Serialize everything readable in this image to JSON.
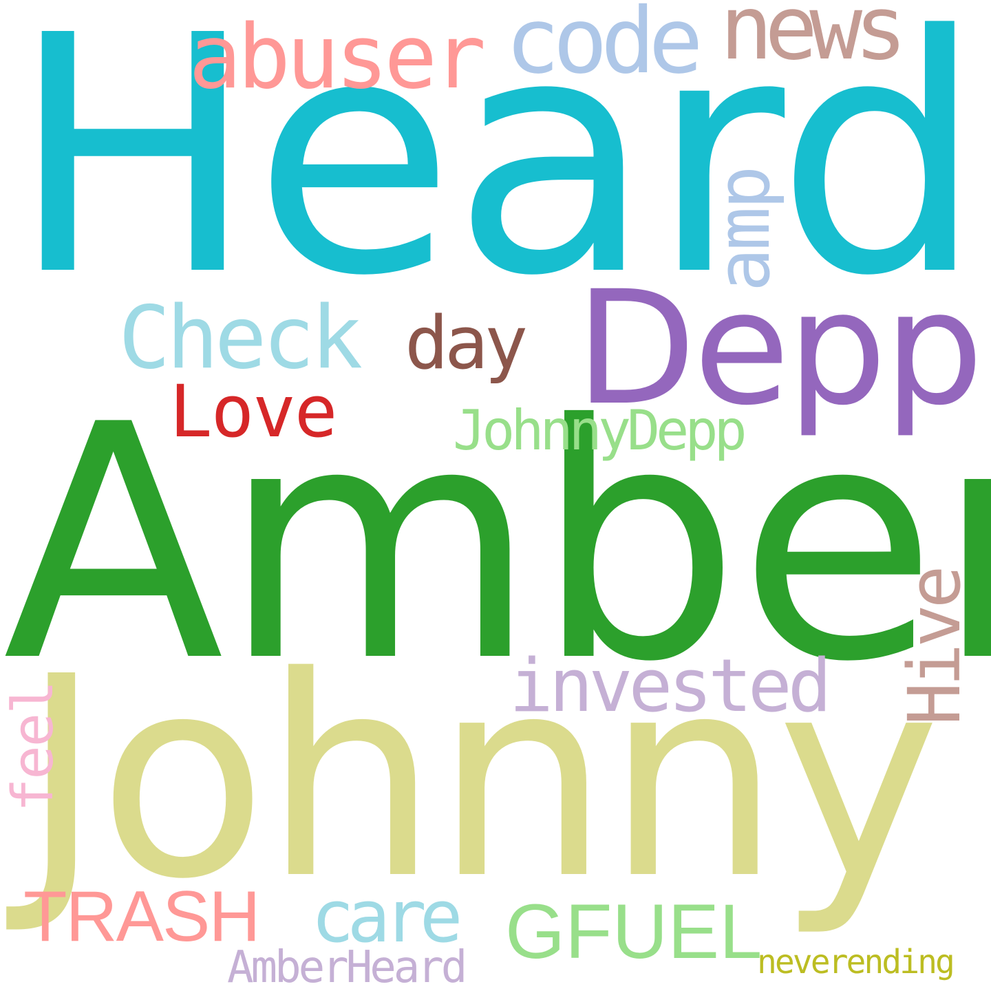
{
  "words": [
    {
      "id": "heard",
      "text": "Heard",
      "color": "#17becf"
    },
    {
      "id": "amber",
      "text": "Amber",
      "color": "#2ca02c"
    },
    {
      "id": "johnny",
      "text": "Johnny",
      "color": "#dbdb8d"
    },
    {
      "id": "depp",
      "text": "Depp",
      "color": "#9467bd"
    },
    {
      "id": "abuser",
      "text": "abuser",
      "color": "#ff9896"
    },
    {
      "id": "code",
      "text": "code",
      "color": "#aec7e8"
    },
    {
      "id": "news",
      "text": "news",
      "color": "#c49c94"
    },
    {
      "id": "amp",
      "text": "amp",
      "color": "#aec7e8"
    },
    {
      "id": "check",
      "text": "Check",
      "color": "#9edae5"
    },
    {
      "id": "day",
      "text": "day",
      "color": "#8c564b"
    },
    {
      "id": "love",
      "text": "Love",
      "color": "#d62728"
    },
    {
      "id": "johnnydepp",
      "text": "JohnnyDepp",
      "color": "#98df8a"
    },
    {
      "id": "hive",
      "text": "Hive",
      "color": "#c49c94"
    },
    {
      "id": "invested",
      "text": "invested",
      "color": "#c5b0d5"
    },
    {
      "id": "feel",
      "text": "feel",
      "color": "#f7b6d2"
    },
    {
      "id": "trash",
      "text": "TRASH",
      "color": "#ff9896"
    },
    {
      "id": "care",
      "text": "care",
      "color": "#9edae5"
    },
    {
      "id": "gfuel",
      "text": "GFUEL",
      "color": "#98df8a"
    },
    {
      "id": "amberheard",
      "text": "AmberHeard",
      "color": "#c5b0d5"
    },
    {
      "id": "neverending",
      "text": "neverending",
      "color": "#bcbd22"
    }
  ]
}
